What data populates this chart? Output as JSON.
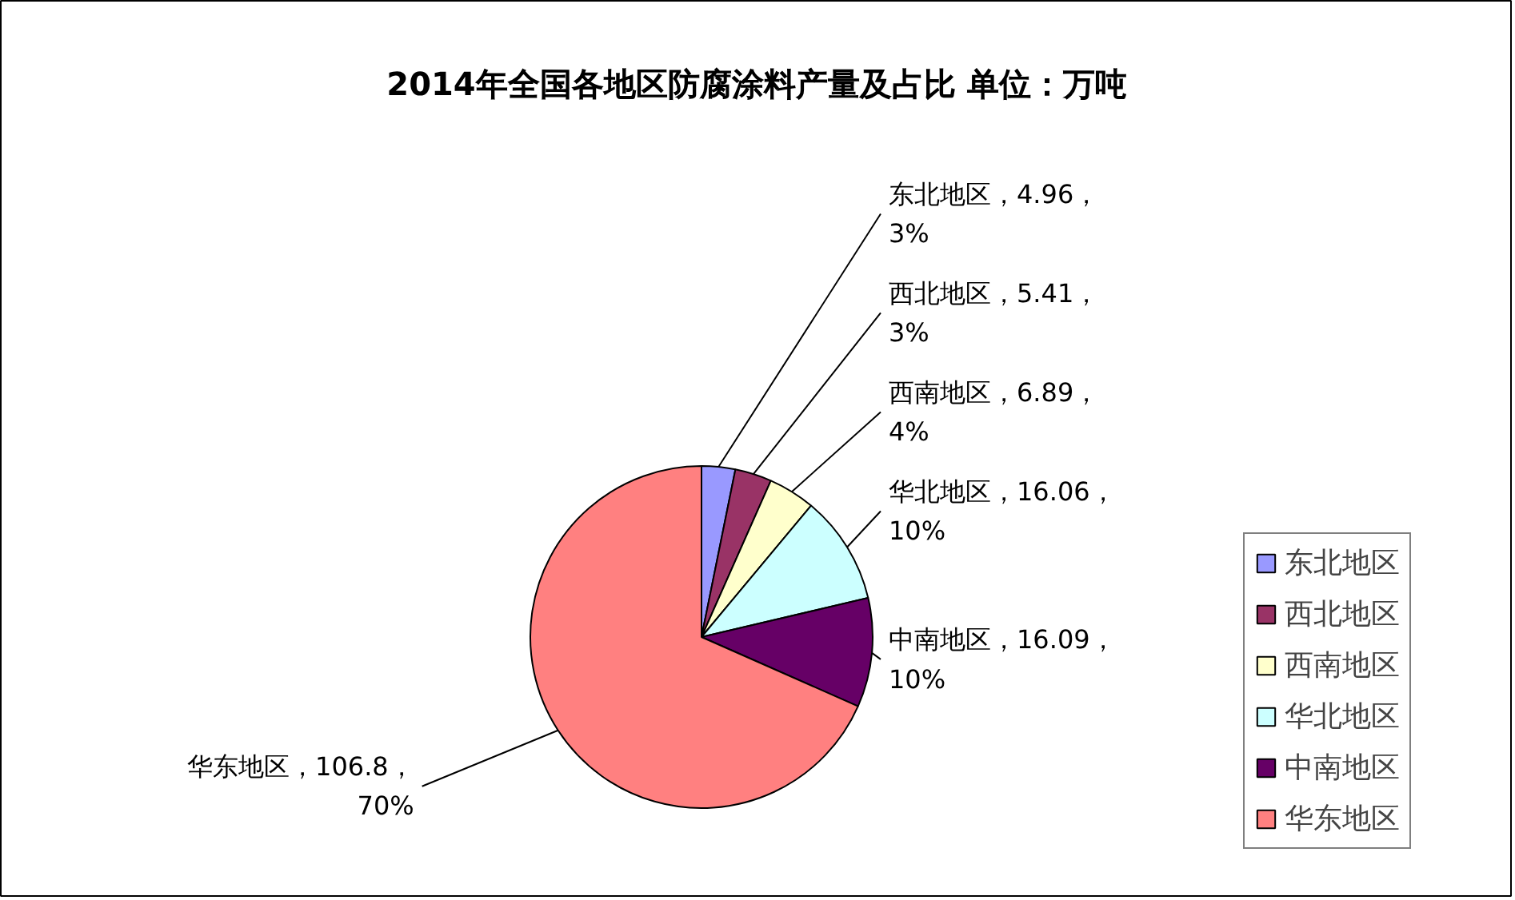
{
  "chart_data": {
    "type": "pie",
    "title": "2014年全国各地区防腐涂料产量及占比 单位：万吨",
    "categories": [
      "东北地区",
      "西北地区",
      "西南地区",
      "华北地区",
      "中南地区",
      "华东地区"
    ],
    "values": [
      4.96,
      5.41,
      6.89,
      16.06,
      16.09,
      106.8
    ],
    "colors": [
      "#9999ff",
      "#993366",
      "#ffffcc",
      "#ccffff",
      "#660066",
      "#ff8080"
    ],
    "value_labels": [
      "东北地区，4.96，\n3%",
      "西北地区，5.41，\n3%",
      "西南地区，6.89，\n4%",
      "华北地区，16.06，\n10%",
      "中南地区，16.09，\n10%",
      "华东地区，106.8，\n70%"
    ],
    "legend": "right"
  }
}
